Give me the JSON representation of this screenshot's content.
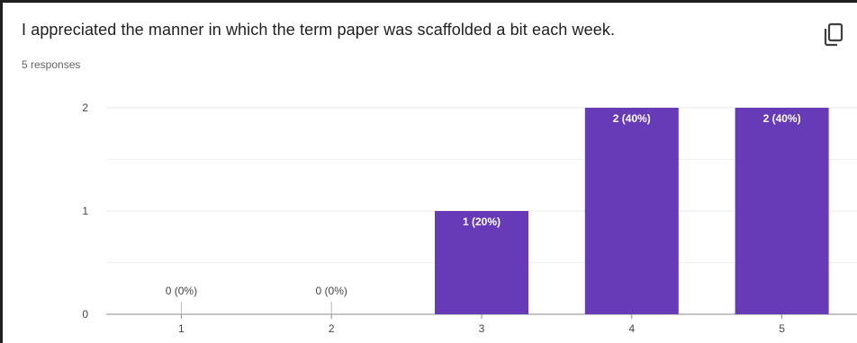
{
  "question": {
    "title": "I appreciated the manner in which the term paper was scaffolded a bit each week.",
    "responses_text": "5 responses"
  },
  "icons": {
    "copy": "copy-icon"
  },
  "colors": {
    "bar": "#673ab7",
    "grid": "#e8e8e8",
    "axis": "#888888"
  },
  "chart_data": {
    "type": "bar",
    "categories": [
      "1",
      "2",
      "3",
      "4",
      "5"
    ],
    "values": [
      0,
      0,
      1,
      2,
      2
    ],
    "data_labels": [
      "0 (0%)",
      "0 (0%)",
      "1 (20%)",
      "2 (40%)",
      "2 (40%)"
    ],
    "yticks": [
      "0",
      "1",
      "2"
    ],
    "ylim": [
      0,
      2
    ],
    "title": "I appreciated the manner in which the term paper was scaffolded a bit each week.",
    "xlabel": "",
    "ylabel": "",
    "grid": true,
    "legend": "none"
  }
}
